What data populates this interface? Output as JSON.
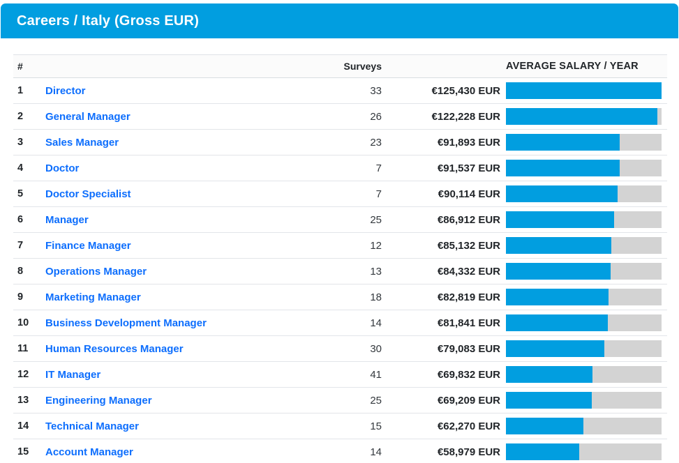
{
  "title_bar": {
    "title": "Careers / Italy (Gross EUR)"
  },
  "colors": {
    "accent_blue": "#019EE0",
    "link_blue": "#0d6efd",
    "bar_track_gray": "#d3d3d3",
    "header_row_bg": "#fbfbfb",
    "row_border": "#e2e5e9",
    "text_dark": "#212529"
  },
  "table": {
    "headers": {
      "rank": "#",
      "surveys": "Surveys",
      "salary": "",
      "bar": "AVERAGE SALARY / YEAR"
    },
    "max_value": 125430,
    "rows": [
      {
        "rank": "1",
        "career": "Director",
        "surveys": "33",
        "salary": "€125,430 EUR",
        "value": 125430
      },
      {
        "rank": "2",
        "career": "General Manager",
        "surveys": "26",
        "salary": "€122,228 EUR",
        "value": 122228
      },
      {
        "rank": "3",
        "career": "Sales Manager",
        "surveys": "23",
        "salary": "€91,893 EUR",
        "value": 91893
      },
      {
        "rank": "4",
        "career": "Doctor",
        "surveys": "7",
        "salary": "€91,537 EUR",
        "value": 91537
      },
      {
        "rank": "5",
        "career": "Doctor Specialist",
        "surveys": "7",
        "salary": "€90,114 EUR",
        "value": 90114
      },
      {
        "rank": "6",
        "career": "Manager",
        "surveys": "25",
        "salary": "€86,912 EUR",
        "value": 86912
      },
      {
        "rank": "7",
        "career": "Finance Manager",
        "surveys": "12",
        "salary": "€85,132 EUR",
        "value": 85132
      },
      {
        "rank": "8",
        "career": "Operations Manager",
        "surveys": "13",
        "salary": "€84,332 EUR",
        "value": 84332
      },
      {
        "rank": "9",
        "career": "Marketing Manager",
        "surveys": "18",
        "salary": "€82,819 EUR",
        "value": 82819
      },
      {
        "rank": "10",
        "career": "Business Development Manager",
        "surveys": "14",
        "salary": "€81,841 EUR",
        "value": 81841
      },
      {
        "rank": "11",
        "career": "Human Resources Manager",
        "surveys": "30",
        "salary": "€79,083 EUR",
        "value": 79083
      },
      {
        "rank": "12",
        "career": "IT Manager",
        "surveys": "41",
        "salary": "€69,832 EUR",
        "value": 69832
      },
      {
        "rank": "13",
        "career": "Engineering Manager",
        "surveys": "25",
        "salary": "€69,209 EUR",
        "value": 69209
      },
      {
        "rank": "14",
        "career": "Technical Manager",
        "surveys": "15",
        "salary": "€62,270 EUR",
        "value": 62270
      },
      {
        "rank": "15",
        "career": "Account Manager",
        "surveys": "14",
        "salary": "€58,979 EUR",
        "value": 58979
      }
    ]
  },
  "chart_data": {
    "type": "bar",
    "orientation": "horizontal",
    "title": "Careers / Italy (Gross EUR)",
    "categories": [
      "Director",
      "General Manager",
      "Sales Manager",
      "Doctor",
      "Doctor Specialist",
      "Manager",
      "Finance Manager",
      "Operations Manager",
      "Marketing Manager",
      "Business Development Manager",
      "Human Resources Manager",
      "IT Manager",
      "Engineering Manager",
      "Technical Manager",
      "Account Manager"
    ],
    "series": [
      {
        "name": "Average Salary / Year (EUR)",
        "values": [
          125430,
          122228,
          91893,
          91537,
          90114,
          86912,
          85132,
          84332,
          82819,
          81841,
          79083,
          69832,
          69209,
          62270,
          58979
        ]
      },
      {
        "name": "Surveys",
        "values": [
          33,
          26,
          23,
          7,
          7,
          25,
          12,
          13,
          18,
          14,
          30,
          41,
          25,
          15,
          14
        ]
      }
    ],
    "value_labels": [
      "€125,430 EUR",
      "€122,228 EUR",
      "€91,893 EUR",
      "€91,537 EUR",
      "€90,114 EUR",
      "€86,912 EUR",
      "€85,132 EUR",
      "€84,332 EUR",
      "€82,819 EUR",
      "€81,841 EUR",
      "€79,083 EUR",
      "€69,832 EUR",
      "€69,209 EUR",
      "€62,270 EUR",
      "€58,979 EUR"
    ],
    "xlim": [
      0,
      125430
    ],
    "legend": "none",
    "grid": false,
    "bar_axis_label": "AVERAGE SALARY / YEAR"
  }
}
